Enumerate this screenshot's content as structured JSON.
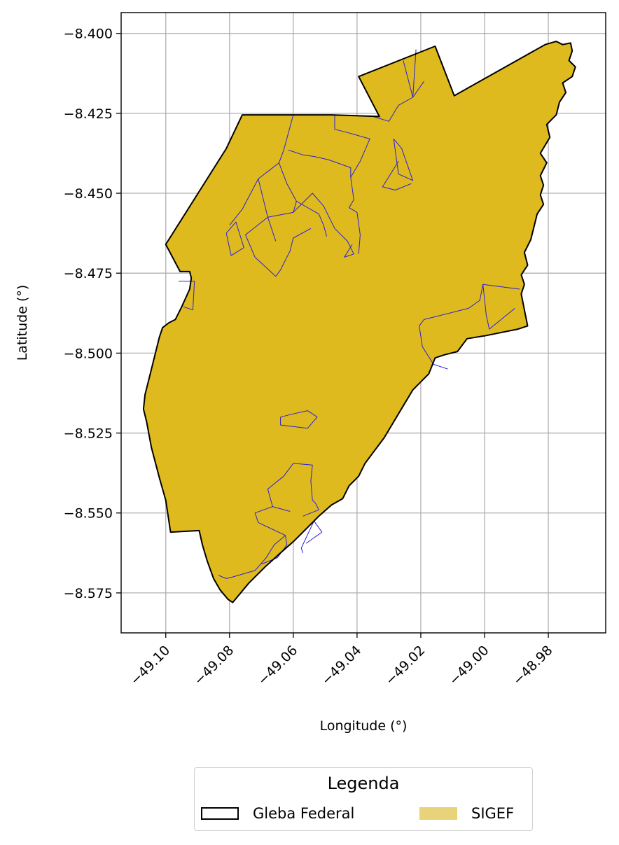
{
  "chart_data": {
    "type": "map",
    "xlabel": "Longitude (°)",
    "ylabel": "Latitude (°)",
    "xlim": [
      -49.114,
      -48.962
    ],
    "ylim": [
      -8.5875,
      -8.3935
    ],
    "grid": true,
    "x_ticks": [
      -49.1,
      -49.08,
      -49.06,
      -49.04,
      -49.02,
      -49.0,
      -48.98
    ],
    "x_tick_labels": [
      "−49.10",
      "−49.08",
      "−49.06",
      "−49.04",
      "−49.02",
      "−49.00",
      "−48.98"
    ],
    "y_ticks": [
      -8.4,
      -8.425,
      -8.45,
      -8.475,
      -8.5,
      -8.525,
      -8.55,
      -8.575
    ],
    "y_tick_labels": [
      "−8.400",
      "−8.425",
      "−8.450",
      "−8.475",
      "−8.500",
      "−8.525",
      "−8.550",
      "−8.575"
    ],
    "colors": {
      "sigef_fill": "#deba1f",
      "gleba_edge": "#000000",
      "parcel_edge": "#2a1fd6",
      "legend_sigef_swatch": "#e8d27a",
      "grid": "#b0b0b0"
    },
    "gleba_federal_outline": [
      [
        -49.1,
        -8.466
      ],
      [
        -49.081,
        -8.436
      ],
      [
        -49.076,
        -8.4255
      ],
      [
        -49.048,
        -8.4255
      ],
      [
        -49.033,
        -8.426
      ],
      [
        -49.0395,
        -8.4135
      ],
      [
        -49.0155,
        -8.404
      ],
      [
        -49.0095,
        -8.4195
      ],
      [
        -48.981,
        -8.4035
      ],
      [
        -48.9775,
        -8.4025
      ],
      [
        -48.9755,
        -8.4035
      ],
      [
        -48.973,
        -8.403
      ],
      [
        -48.9725,
        -8.4055
      ],
      [
        -48.9735,
        -8.4085
      ],
      [
        -48.9715,
        -8.4105
      ],
      [
        -48.9725,
        -8.4135
      ],
      [
        -48.9755,
        -8.4155
      ],
      [
        -48.9745,
        -8.4185
      ],
      [
        -48.9765,
        -8.4215
      ],
      [
        -48.9775,
        -8.4255
      ],
      [
        -48.9805,
        -8.4285
      ],
      [
        -48.9795,
        -8.4325
      ],
      [
        -48.9825,
        -8.4375
      ],
      [
        -48.9805,
        -8.4405
      ],
      [
        -48.9825,
        -8.4445
      ],
      [
        -48.9815,
        -8.4475
      ],
      [
        -48.9825,
        -8.4505
      ],
      [
        -48.9815,
        -8.4535
      ],
      [
        -48.9835,
        -8.4565
      ],
      [
        -48.9845,
        -8.4605
      ],
      [
        -48.9855,
        -8.4645
      ],
      [
        -48.9875,
        -8.4685
      ],
      [
        -48.9865,
        -8.4725
      ],
      [
        -48.9885,
        -8.4755
      ],
      [
        -48.9875,
        -8.4785
      ],
      [
        -48.9885,
        -8.4815
      ],
      [
        -48.9875,
        -8.4865
      ],
      [
        -48.9865,
        -8.4915
      ],
      [
        -48.9895,
        -8.4925
      ],
      [
        -48.9945,
        -8.4935
      ],
      [
        -48.9995,
        -8.4945
      ],
      [
        -49.0055,
        -8.4955
      ],
      [
        -49.0085,
        -8.4995
      ],
      [
        -49.0125,
        -8.5005
      ],
      [
        -49.0155,
        -8.5015
      ],
      [
        -49.0175,
        -8.5065
      ],
      [
        -49.0195,
        -8.5085
      ],
      [
        -49.0225,
        -8.5115
      ],
      [
        -49.0255,
        -8.5165
      ],
      [
        -49.0285,
        -8.5215
      ],
      [
        -49.0315,
        -8.5265
      ],
      [
        -49.0345,
        -8.5305
      ],
      [
        -49.0375,
        -8.5345
      ],
      [
        -49.0395,
        -8.5385
      ],
      [
        -49.0425,
        -8.5415
      ],
      [
        -49.0445,
        -8.5455
      ],
      [
        -49.048,
        -8.5475
      ],
      [
        -49.052,
        -8.551
      ],
      [
        -49.056,
        -8.555
      ],
      [
        -49.06,
        -8.559
      ],
      [
        -49.064,
        -8.5625
      ],
      [
        -49.069,
        -8.567
      ],
      [
        -49.074,
        -8.572
      ],
      [
        -49.079,
        -8.578
      ],
      [
        -49.0805,
        -8.577
      ],
      [
        -49.083,
        -8.574
      ],
      [
        -49.085,
        -8.5705
      ],
      [
        -49.087,
        -8.565
      ],
      [
        -49.0885,
        -8.56
      ],
      [
        -49.0895,
        -8.5555
      ],
      [
        -49.0985,
        -8.556
      ],
      [
        -49.1,
        -8.546
      ],
      [
        -49.102,
        -8.539
      ],
      [
        -49.1045,
        -8.5295
      ],
      [
        -49.106,
        -8.5215
      ],
      [
        -49.107,
        -8.5175
      ],
      [
        -49.1065,
        -8.513
      ],
      [
        -49.1055,
        -8.509
      ],
      [
        -49.1035,
        -8.501
      ],
      [
        -49.102,
        -8.495
      ],
      [
        -49.101,
        -8.492
      ],
      [
        -49.099,
        -8.4905
      ],
      [
        -49.097,
        -8.4895
      ],
      [
        -49.095,
        -8.4855
      ],
      [
        -49.0925,
        -8.48
      ],
      [
        -49.092,
        -8.4765
      ],
      [
        -49.0925,
        -8.4745
      ],
      [
        -49.0955,
        -8.4745
      ],
      [
        -49.1,
        -8.466
      ]
    ],
    "sigef_parcels": [
      [
        [
          -49.027,
          -8.4225
        ],
        [
          -49.03,
          -8.4275
        ],
        [
          -49.035,
          -8.426
        ]
      ],
      [
        [
          -49.027,
          -8.4225
        ],
        [
          -49.0225,
          -8.42
        ],
        [
          -49.019,
          -8.415
        ]
      ],
      [
        [
          -49.0225,
          -8.42
        ],
        [
          -49.0255,
          -8.4085
        ]
      ],
      [
        [
          -49.0225,
          -8.42
        ],
        [
          -49.0215,
          -8.405
        ]
      ],
      [
        [
          -49.06,
          -8.4255
        ],
        [
          -49.0615,
          -8.431
        ],
        [
          -49.063,
          -8.4365
        ],
        [
          -49.0645,
          -8.4405
        ],
        [
          -49.062,
          -8.447
        ],
        [
          -49.059,
          -8.4525
        ],
        [
          -49.052,
          -8.4565
        ],
        [
          -49.0505,
          -8.46
        ],
        [
          -49.0495,
          -8.4635
        ]
      ],
      [
        [
          -49.0645,
          -8.4405
        ],
        [
          -49.071,
          -8.4455
        ],
        [
          -49.068,
          -8.4575
        ],
        [
          -49.0655,
          -8.465
        ]
      ],
      [
        [
          -49.068,
          -8.4575
        ],
        [
          -49.06,
          -8.456
        ],
        [
          -49.054,
          -8.45
        ],
        [
          -49.0505,
          -8.454
        ],
        [
          -49.047,
          -8.461
        ],
        [
          -49.043,
          -8.465
        ],
        [
          -49.041,
          -8.469
        ],
        [
          -49.044,
          -8.47
        ],
        [
          -49.0415,
          -8.466
        ]
      ],
      [
        [
          -49.0615,
          -8.4365
        ],
        [
          -49.057,
          -8.438
        ],
        [
          -49.0535,
          -8.4385
        ],
        [
          -49.049,
          -8.4395
        ],
        [
          -49.042,
          -8.442
        ],
        [
          -49.042,
          -8.445
        ],
        [
          -49.041,
          -8.452
        ],
        [
          -49.0425,
          -8.4545
        ],
        [
          -49.04,
          -8.456
        ],
        [
          -49.039,
          -8.463
        ],
        [
          -49.0395,
          -8.469
        ]
      ],
      [
        [
          -49.047,
          -8.4255
        ],
        [
          -49.047,
          -8.43
        ],
        [
          -49.043,
          -8.431
        ],
        [
          -49.036,
          -8.433
        ],
        [
          -49.039,
          -8.44
        ],
        [
          -49.042,
          -8.445
        ]
      ],
      [
        [
          -49.059,
          -8.4525
        ],
        [
          -49.06,
          -8.456
        ]
      ],
      [
        [
          -49.071,
          -8.4455
        ],
        [
          -49.076,
          -8.455
        ]
      ],
      [
        [
          -49.076,
          -8.455
        ],
        [
          -49.08,
          -8.46
        ]
      ],
      [
        [
          -49.068,
          -8.4575
        ],
        [
          -49.075,
          -8.463
        ],
        [
          -49.072,
          -8.47
        ],
        [
          -49.0655,
          -8.476
        ],
        [
          -49.064,
          -8.474
        ],
        [
          -49.061,
          -8.468
        ],
        [
          -49.06,
          -8.464
        ],
        [
          -49.0545,
          -8.461
        ]
      ],
      [
        [
          -49.081,
          -8.4625
        ],
        [
          -49.078,
          -8.459
        ],
        [
          -49.0755,
          -8.467
        ],
        [
          -49.0795,
          -8.4695
        ],
        [
          -49.081,
          -8.4625
        ]
      ],
      [
        [
          -49.0285,
          -8.433
        ],
        [
          -49.026,
          -8.436
        ],
        [
          -49.0225,
          -8.446
        ],
        [
          -49.027,
          -8.444
        ],
        [
          -49.0285,
          -8.433
        ]
      ],
      [
        [
          -49.027,
          -8.44
        ],
        [
          -49.032,
          -8.448
        ],
        [
          -49.028,
          -8.449
        ],
        [
          -49.023,
          -8.447
        ]
      ],
      [
        [
          -49.096,
          -8.4775
        ],
        [
          -49.091,
          -8.4775
        ],
        [
          -49.0915,
          -8.4865
        ],
        [
          -49.0945,
          -8.4855
        ]
      ],
      [
        [
          -49.0205,
          -8.4915
        ],
        [
          -49.019,
          -8.4895
        ],
        [
          -49.015,
          -8.4885
        ],
        [
          -49.005,
          -8.486
        ],
        [
          -49.0015,
          -8.4835
        ],
        [
          -49.0005,
          -8.4785
        ],
        [
          -48.989,
          -8.48
        ]
      ],
      [
        [
          -49.0205,
          -8.4915
        ],
        [
          -49.0195,
          -8.498
        ],
        [
          -49.016,
          -8.5035
        ],
        [
          -49.0115,
          -8.505
        ]
      ],
      [
        [
          -48.9905,
          -8.486
        ],
        [
          -48.9985,
          -8.4925
        ],
        [
          -48.9995,
          -8.488
        ],
        [
          -49.0005,
          -8.4785
        ]
      ],
      [
        [
          -49.064,
          -8.52
        ],
        [
          -49.06,
          -8.519
        ],
        [
          -49.0555,
          -8.518
        ],
        [
          -49.0525,
          -8.52
        ],
        [
          -49.0555,
          -8.5235
        ],
        [
          -49.064,
          -8.5225
        ],
        [
          -49.064,
          -8.52
        ]
      ],
      [
        [
          -49.06,
          -8.5345
        ],
        [
          -49.054,
          -8.535
        ],
        [
          -49.0545,
          -8.54
        ],
        [
          -49.054,
          -8.546
        ],
        [
          -49.053,
          -8.547
        ],
        [
          -49.052,
          -8.549
        ],
        [
          -49.057,
          -8.551
        ]
      ],
      [
        [
          -49.06,
          -8.5345
        ],
        [
          -49.063,
          -8.5385
        ],
        [
          -49.068,
          -8.5425
        ],
        [
          -49.0665,
          -8.548
        ],
        [
          -49.061,
          -8.5495
        ]
      ],
      [
        [
          -49.0665,
          -8.548
        ],
        [
          -49.072,
          -8.55
        ],
        [
          -49.071,
          -8.553
        ],
        [
          -49.0625,
          -8.557
        ],
        [
          -49.062,
          -8.56
        ],
        [
          -49.065,
          -8.564
        ],
        [
          -49.07,
          -8.566
        ]
      ],
      [
        [
          -49.0625,
          -8.557
        ],
        [
          -49.066,
          -8.56
        ],
        [
          -49.0685,
          -8.564
        ],
        [
          -49.072,
          -8.568
        ],
        [
          -49.079,
          -8.57
        ],
        [
          -49.081,
          -8.5705
        ],
        [
          -49.0835,
          -8.5695
        ]
      ],
      [
        [
          -49.0535,
          -8.5525
        ],
        [
          -49.0575,
          -8.561
        ],
        [
          -49.057,
          -8.5625
        ]
      ],
      [
        [
          -49.0535,
          -8.5525
        ],
        [
          -49.051,
          -8.556
        ],
        [
          -49.056,
          -8.5595
        ]
      ]
    ]
  },
  "legend": {
    "title": "Legenda",
    "items": [
      {
        "label": "Gleba Federal",
        "style": "outline"
      },
      {
        "label": "SIGEF",
        "style": "filled"
      }
    ]
  }
}
